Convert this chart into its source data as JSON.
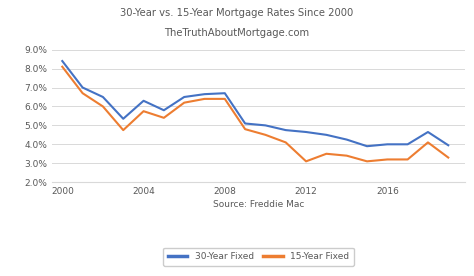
{
  "title_line1": "30-Year vs. 15-Year Mortgage Rates Since 2000",
  "title_line2": "TheTruthAboutMortgage.com",
  "xlabel": "Source: Freddie Mac",
  "ylim": [
    2.0,
    9.0
  ],
  "yticks": [
    2.0,
    3.0,
    4.0,
    5.0,
    6.0,
    7.0,
    8.0,
    9.0
  ],
  "xticks": [
    2000,
    2004,
    2008,
    2012,
    2016
  ],
  "color_30yr": "#4472C4",
  "color_15yr": "#ED7D31",
  "legend_30yr": "30-Year Fixed",
  "legend_15yr": "15-Year Fixed",
  "years_30yr": [
    2000,
    2001,
    2002,
    2003,
    2004,
    2005,
    2006,
    2007,
    2008,
    2009,
    2010,
    2011,
    2012,
    2013,
    2014,
    2015,
    2016,
    2017,
    2018,
    2019
  ],
  "rates_30yr": [
    8.4,
    7.0,
    6.5,
    5.35,
    6.3,
    5.8,
    6.5,
    6.65,
    6.7,
    5.1,
    5.0,
    4.75,
    4.65,
    4.5,
    4.25,
    3.9,
    4.0,
    4.0,
    4.65,
    3.95
  ],
  "years_15yr": [
    2000,
    2001,
    2002,
    2003,
    2004,
    2005,
    2006,
    2007,
    2008,
    2009,
    2010,
    2011,
    2012,
    2013,
    2014,
    2015,
    2016,
    2017,
    2018,
    2019
  ],
  "rates_15yr": [
    8.1,
    6.7,
    6.0,
    4.75,
    5.75,
    5.4,
    6.2,
    6.4,
    6.4,
    4.8,
    4.5,
    4.1,
    3.1,
    3.5,
    3.4,
    3.1,
    3.2,
    3.2,
    4.1,
    3.3
  ],
  "title_color": "#595959",
  "tick_color": "#595959",
  "grid_color": "#D9D9D9",
  "bg_color": "#FFFFFF",
  "linewidth": 1.5
}
